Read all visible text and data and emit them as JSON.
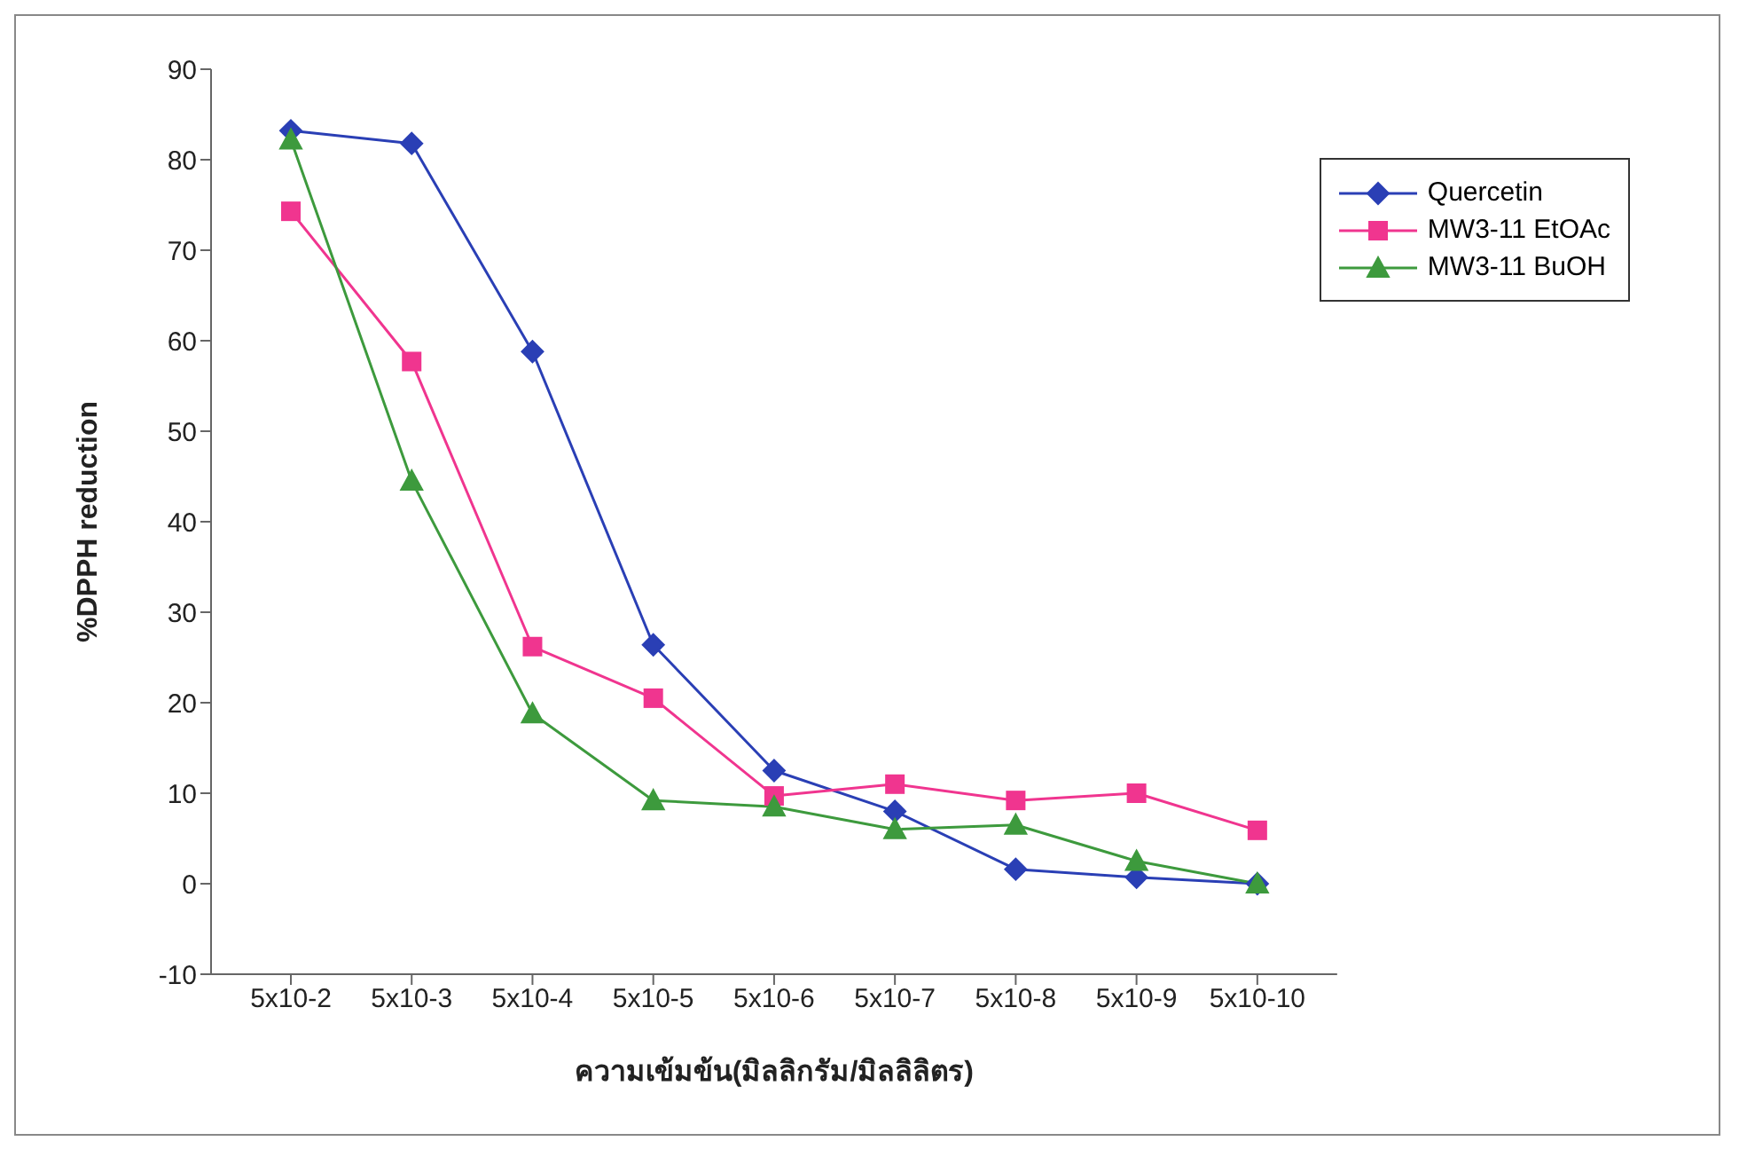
{
  "chart_data": {
    "type": "line",
    "xlabel": "ความเข้มข้น(มิลลิกรัม/มิลลิลิตร)",
    "ylabel": "%DPPH reduction",
    "categories": [
      "5x10-2",
      "5x10-3",
      "5x10-4",
      "5x10-5",
      "5x10-6",
      "5x10-7",
      "5x10-8",
      "5x10-9",
      "5x10-10"
    ],
    "series": [
      {
        "name": "Quercetin",
        "color": "#2a3fb5",
        "marker": "diamond",
        "values": [
          83.2,
          81.8,
          58.8,
          26.4,
          12.5,
          8,
          1.6,
          0.7,
          0
        ]
      },
      {
        "name": "MW3-11  EtOAc",
        "color": "#f0358f",
        "marker": "square",
        "values": [
          74.3,
          57.7,
          26.2,
          20.5,
          9.7,
          11,
          9.2,
          10,
          5.9
        ]
      },
      {
        "name": "MW3-11 BuOH",
        "color": "#3d9a3d",
        "marker": "triangle",
        "values": [
          82.2,
          44.5,
          18.8,
          9.2,
          8.5,
          6,
          6.5,
          2.5,
          0
        ]
      }
    ],
    "ylim": [
      -10,
      90
    ],
    "yticks": [
      -10,
      0,
      10,
      20,
      30,
      40,
      50,
      60,
      70,
      80,
      90
    ],
    "grid": false,
    "legend": "top right",
    "line_style": "solid"
  }
}
